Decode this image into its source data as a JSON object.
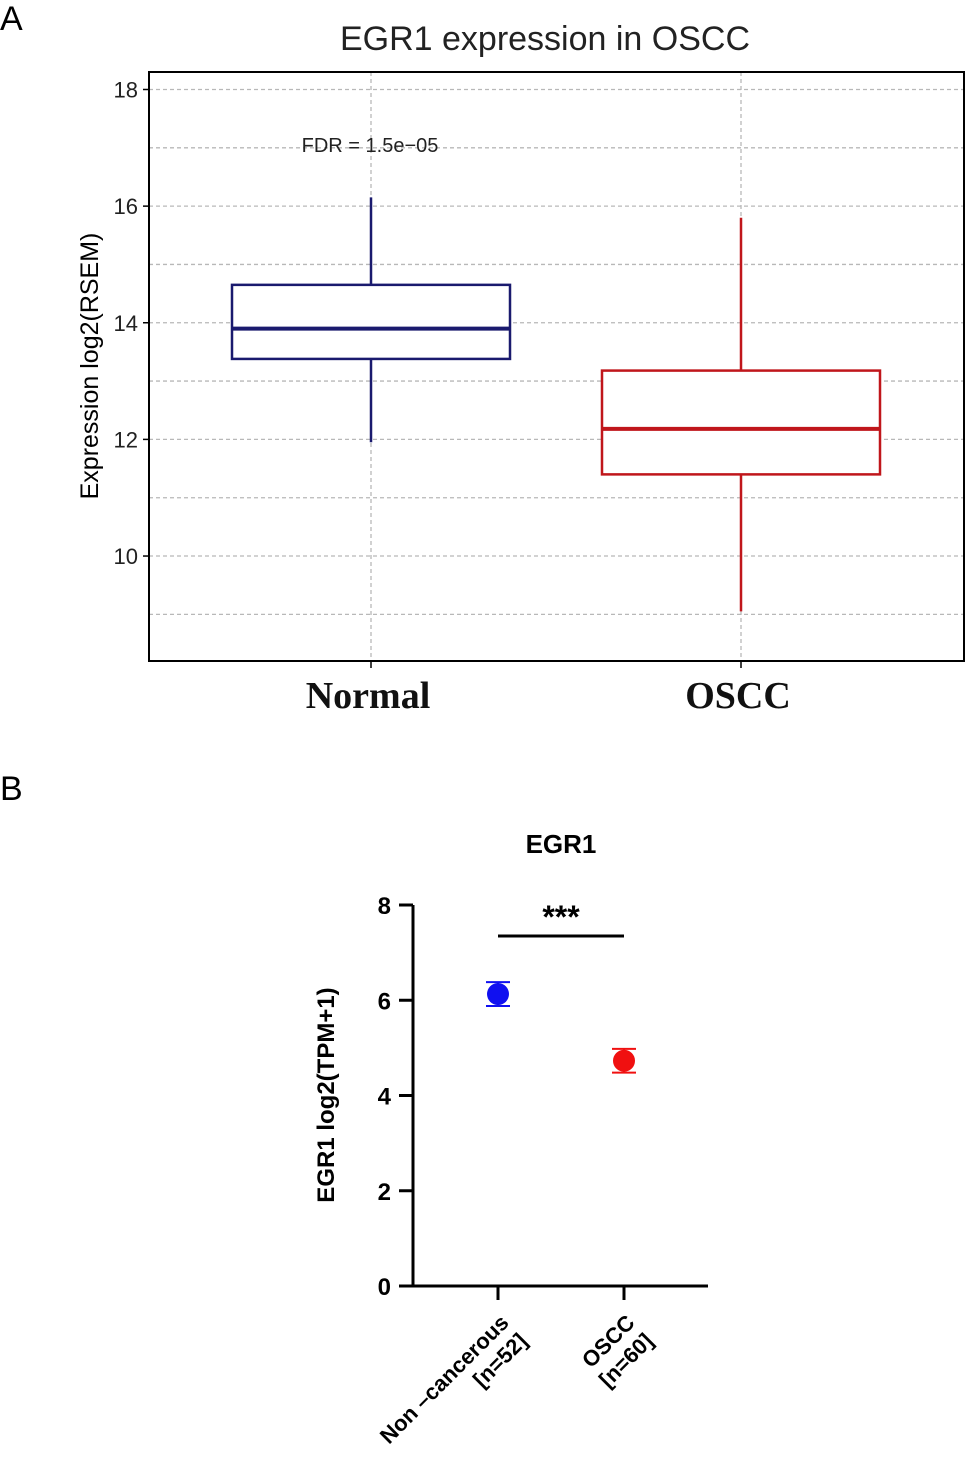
{
  "colors": {
    "normal": "#1a1a6e",
    "oscc_a": "#c0161b",
    "noncancer": "#1010f0",
    "oscc_b": "#f01010",
    "grid": "#b8b8b8",
    "axis": "#000000"
  },
  "chart_data": [
    {
      "panel": "A",
      "type": "box",
      "title": "EGR1 expression in OSCC",
      "xlabel": "",
      "ylabel": "Expression log2(RSEM)",
      "ylim": [
        8.2,
        18.3
      ],
      "yticks": [
        10,
        12,
        14,
        16,
        18
      ],
      "grid_y": [
        9,
        10,
        11,
        12,
        13,
        14,
        15,
        16,
        17,
        18
      ],
      "grid": true,
      "annotation": "FDR = 1.5e−05",
      "categories": [
        "Normal",
        "OSCC"
      ],
      "boxes": [
        {
          "name": "Normal",
          "whisker_low": 11.95,
          "q1": 13.38,
          "median": 13.9,
          "q3": 14.65,
          "whisker_high": 16.15
        },
        {
          "name": "OSCC",
          "whisker_low": 9.05,
          "q1": 11.4,
          "median": 12.18,
          "q3": 13.18,
          "whisker_high": 15.8
        }
      ]
    },
    {
      "panel": "B",
      "type": "scatter",
      "title": "EGR1",
      "xlabel": "",
      "ylabel": "EGR1 log2(TPM+1)",
      "ylim": [
        0,
        8
      ],
      "yticks": [
        0,
        2,
        4,
        6,
        8
      ],
      "significance": "***",
      "categories": [
        {
          "line1": "Non –cancerous",
          "line2": "[n=52]"
        },
        {
          "line1": "OSCC",
          "line2": "[n=60]"
        }
      ],
      "points": [
        {
          "name": "Non-cancerous",
          "n": 52,
          "mean": 6.13,
          "error": 0.25
        },
        {
          "name": "OSCC",
          "n": 60,
          "mean": 4.73,
          "error": 0.25
        }
      ]
    }
  ]
}
